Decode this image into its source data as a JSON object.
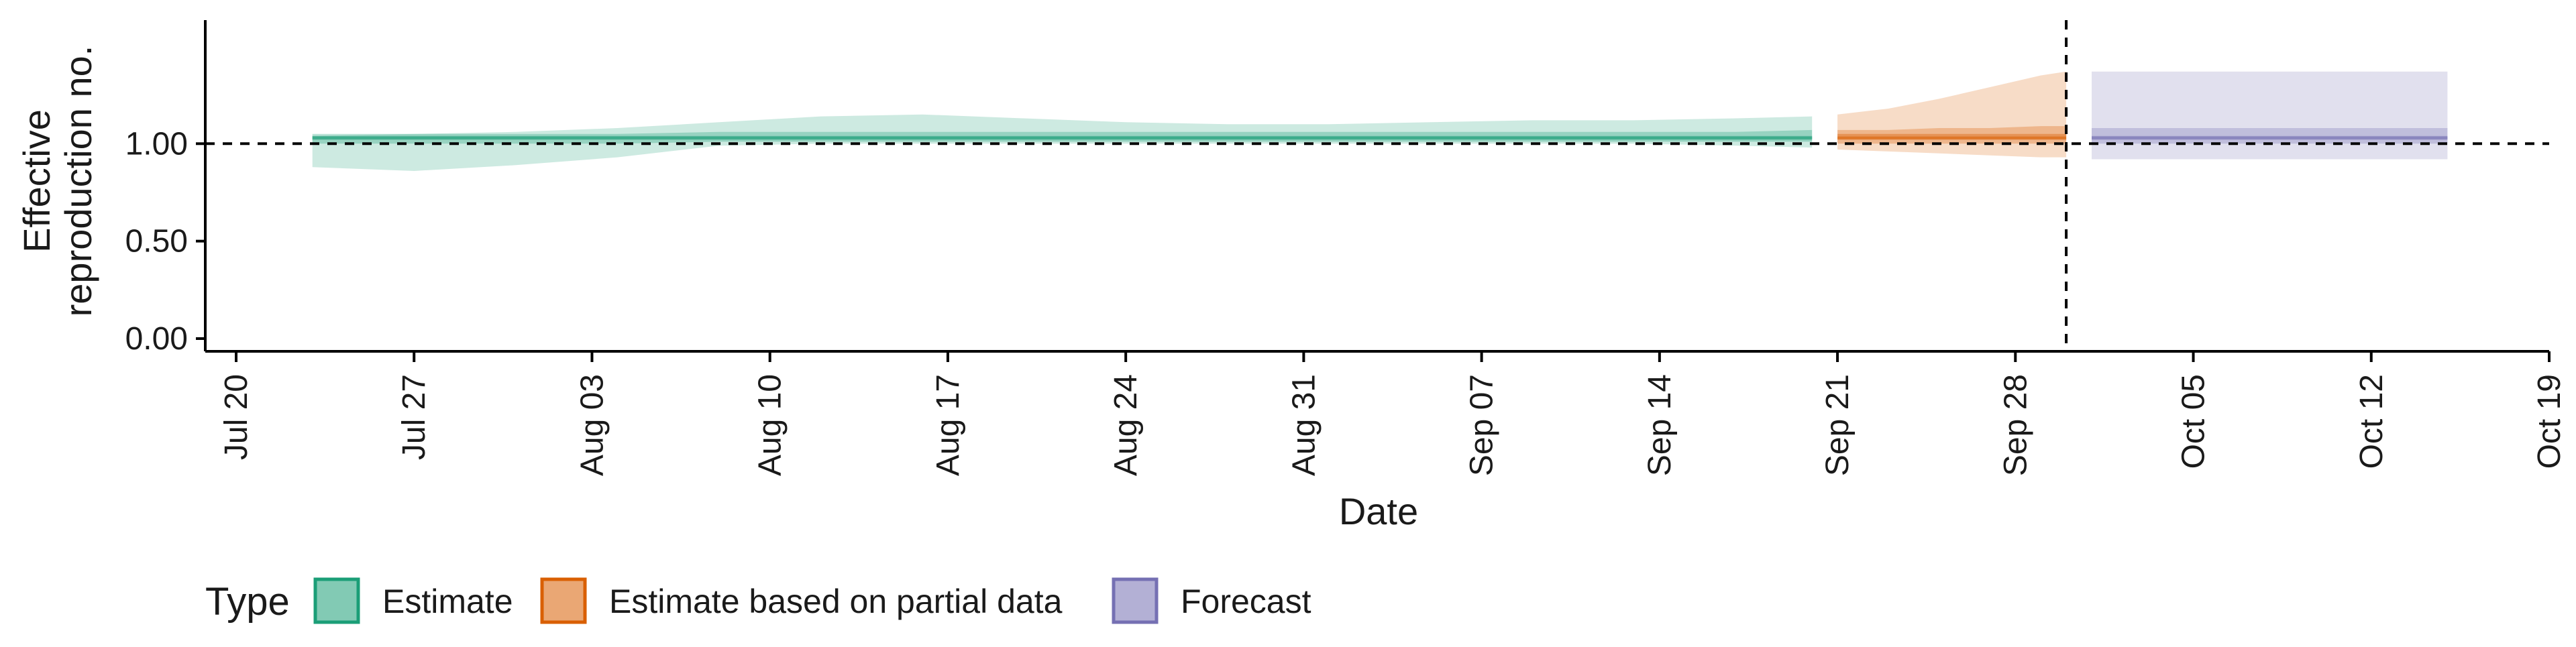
{
  "chart_data": {
    "type": "area",
    "xlabel": "Date",
    "ylabel": [
      "Effective",
      "reproduction no."
    ],
    "ylim": [
      0,
      1.4
    ],
    "yticks": [
      "0.00",
      "0.50",
      "1.00"
    ],
    "ytick_values": [
      0,
      0.5,
      1.0
    ],
    "xlim": [
      "2020-07-20",
      "2020-10-19"
    ],
    "xticks": [
      "Jul 20",
      "Jul 27",
      "Aug 03",
      "Aug 10",
      "Aug 17",
      "Aug 24",
      "Aug 31",
      "Sep 07",
      "Sep 14",
      "Sep 21",
      "Sep 28",
      "Oct 05",
      "Oct 12",
      "Oct 19"
    ],
    "xtick_dates": [
      "2020-07-20",
      "2020-07-27",
      "2020-08-03",
      "2020-08-10",
      "2020-08-17",
      "2020-08-24",
      "2020-08-31",
      "2020-09-07",
      "2020-09-14",
      "2020-09-21",
      "2020-09-28",
      "2020-10-05",
      "2020-10-12",
      "2020-10-19"
    ],
    "reference_hline": 1.0,
    "reference_vline": "2020-09-30",
    "grid": false,
    "legend": {
      "title": "Type",
      "position": "bottom-left",
      "entries": [
        "Estimate",
        "Estimate based on partial data",
        "Forecast"
      ]
    },
    "colors": {
      "Estimate": "#1b9e77",
      "Estimate based on partial data": "#d95f02",
      "Forecast": "#7570b3"
    },
    "series": [
      {
        "name": "Estimate",
        "x": [
          "2020-07-23",
          "2020-07-27",
          "2020-07-31",
          "2020-08-04",
          "2020-08-08",
          "2020-08-12",
          "2020-08-16",
          "2020-08-20",
          "2020-08-24",
          "2020-08-28",
          "2020-09-01",
          "2020-09-05",
          "2020-09-09",
          "2020-09-13",
          "2020-09-17",
          "2020-09-20"
        ],
        "median": [
          1.03,
          1.03,
          1.03,
          1.03,
          1.03,
          1.03,
          1.03,
          1.03,
          1.03,
          1.03,
          1.03,
          1.03,
          1.03,
          1.03,
          1.03,
          1.03
        ],
        "lower_90": [
          0.88,
          0.86,
          0.89,
          0.93,
          0.99,
          1.0,
          1.0,
          1.0,
          1.0,
          1.0,
          1.0,
          1.0,
          1.0,
          1.0,
          0.99,
          0.98
        ],
        "upper_90": [
          1.04,
          1.05,
          1.06,
          1.08,
          1.11,
          1.14,
          1.15,
          1.13,
          1.11,
          1.1,
          1.1,
          1.11,
          1.12,
          1.12,
          1.13,
          1.14
        ],
        "lower_50": [
          1.0,
          1.0,
          1.0,
          1.0,
          1.01,
          1.01,
          1.01,
          1.01,
          1.01,
          1.01,
          1.01,
          1.01,
          1.01,
          1.01,
          1.01,
          1.01
        ],
        "upper_50": [
          1.05,
          1.05,
          1.05,
          1.05,
          1.06,
          1.06,
          1.06,
          1.06,
          1.06,
          1.06,
          1.06,
          1.06,
          1.06,
          1.06,
          1.06,
          1.07
        ],
        "lower_20": [
          1.02,
          1.02,
          1.02,
          1.02,
          1.02,
          1.02,
          1.02,
          1.02,
          1.02,
          1.02,
          1.02,
          1.02,
          1.02,
          1.02,
          1.02,
          1.02
        ],
        "upper_20": [
          1.04,
          1.04,
          1.04,
          1.04,
          1.04,
          1.04,
          1.04,
          1.04,
          1.04,
          1.04,
          1.04,
          1.04,
          1.04,
          1.04,
          1.04,
          1.04
        ]
      },
      {
        "name": "Estimate based on partial data",
        "x": [
          "2020-09-21",
          "2020-09-23",
          "2020-09-25",
          "2020-09-27",
          "2020-09-29",
          "2020-09-30"
        ],
        "median": [
          1.03,
          1.03,
          1.03,
          1.03,
          1.03,
          1.03
        ],
        "lower_90": [
          0.97,
          0.96,
          0.95,
          0.94,
          0.93,
          0.93
        ],
        "upper_90": [
          1.15,
          1.18,
          1.23,
          1.29,
          1.35,
          1.37
        ],
        "lower_50": [
          1.0,
          1.0,
          1.0,
          1.0,
          1.0,
          1.0
        ],
        "upper_50": [
          1.07,
          1.07,
          1.08,
          1.08,
          1.09,
          1.09
        ],
        "lower_20": [
          1.02,
          1.02,
          1.02,
          1.02,
          1.02,
          1.02
        ],
        "upper_20": [
          1.05,
          1.05,
          1.05,
          1.05,
          1.05,
          1.05
        ]
      },
      {
        "name": "Forecast",
        "x": [
          "2020-10-01",
          "2020-10-15"
        ],
        "median": [
          1.03,
          1.03
        ],
        "lower_90": [
          0.92,
          0.92
        ],
        "upper_90": [
          1.37,
          1.37
        ],
        "lower_50": [
          1.0,
          1.0
        ],
        "upper_50": [
          1.08,
          1.08
        ],
        "lower_20": [
          1.02,
          1.02
        ],
        "upper_20": [
          1.04,
          1.04
        ]
      }
    ]
  }
}
